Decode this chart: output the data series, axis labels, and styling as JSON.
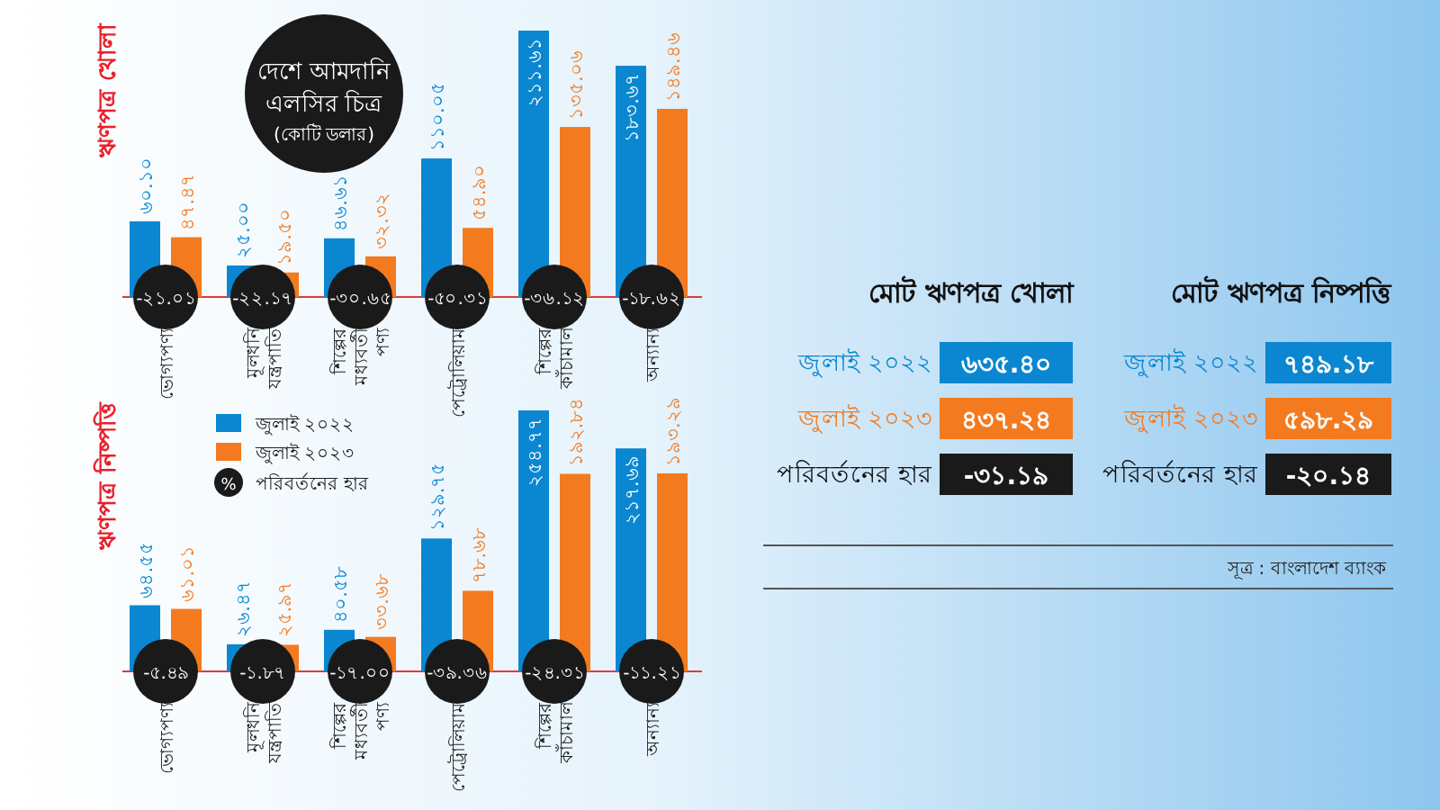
{
  "chart_data": [
    {
      "type": "bar",
      "title": "দেশে আমদানি এলসির চিত্র",
      "subtitle": "(কোটি ডলার)",
      "ylabel": "ঋণপত্র খোলা",
      "categories": [
        "ভোগ্যপণ্য",
        "মূলধনি যন্ত্রপাতি",
        "শিল্পের মধ্যবর্তী পণ্য",
        "পেট্রোলিয়াম",
        "শিল্পের কাঁচামাল",
        "অন্যান্য"
      ],
      "series": [
        {
          "color": "#0a87d0",
          "values": [
            60.1,
            25.0,
            46.61,
            110.05,
            211.61,
            183.67
          ],
          "value_labels": [
            "৬০.১০",
            "২৫.০০",
            "৪৬.৬১",
            "১১০.০৫",
            "২১১.৬১",
            "১৮৩.৬৭"
          ]
        },
        {
          "color": "#f47a20",
          "values": [
            47.47,
            19.5,
            32.32,
            54.9,
            135.06,
            149.46
          ],
          "value_labels": [
            "৪৭.৪৭",
            "১৯.৫০",
            "৩২.৩২",
            "৫৪.৯০",
            "১৩৫.০৬",
            "১৪৯.৪৬"
          ]
        }
      ],
      "annotations": [
        {
          "text": "-২১.০১",
          "x": "ভোগ্যপণ্য"
        },
        {
          "text": "-২২.১৭",
          "x": "মূলধনি যন্ত্রপাতি"
        },
        {
          "text": "-৩০.৬৫",
          "x": "শিল্পের মধ্যবর্তী পণ্য"
        },
        {
          "text": "-৫০.৩১",
          "x": "পেট্রোলিয়াম"
        },
        {
          "text": "-৩৬.১২",
          "x": "শিল্পের কাঁচামাল"
        },
        {
          "text": "-১৮.৬২",
          "x": "অন্যান্য"
        }
      ]
    },
    {
      "type": "bar",
      "ylabel": "ঋণপত্র নিষ্পত্তি",
      "legend": "top left",
      "categories": [
        "ভোগ্যপণ্য",
        "মূলধনি যন্ত্রপাতি",
        "শিল্পের মধ্যবর্তী পণ্য",
        "পেট্রোলিয়াম",
        "শিল্পের কাঁচামাল",
        "অন্যান্য"
      ],
      "series": [
        {
          "name": "জুলাই ২০২২",
          "color": "#0a87d0",
          "values": [
            64.55,
            26.47,
            40.58,
            129.75,
            254.77,
            217.69
          ],
          "value_labels": [
            "৬৪.৫৫",
            "২৬.৪৭",
            "৪০.৫৮",
            "১২৯.৭৫",
            "২৫৪.৭৭",
            "২১৭.৬৯"
          ]
        },
        {
          "name": "জুলাই ২০২৩",
          "color": "#f47a20",
          "values": [
            61.01,
            25.97,
            33.68,
            78.68,
            192.84,
            193.29
          ],
          "value_labels": [
            "৬১.০১",
            "২৫.৯৭",
            "৩৩.৬৮",
            "৭৮.৬৮",
            "১৯২.৮৪",
            "১৯৩.২৯"
          ]
        }
      ],
      "annotations": [
        {
          "text": "-৫.৪৯",
          "x": "ভোগ্যপণ্য"
        },
        {
          "text": "-১.৮৭",
          "x": "মূলধনি যন্ত্রপাতি"
        },
        {
          "text": "-১৭.০০",
          "x": "শিল্পের মধ্যবর্তী পণ্য"
        },
        {
          "text": "-৩৯.৩৬",
          "x": "পেট্রোলিয়াম"
        },
        {
          "text": "-২৪.৩১",
          "x": "শিল্পের কাঁচামাল"
        },
        {
          "text": "-১১.২১",
          "x": "অন্যান্য"
        },
        "%",
        "পরিবর্তনের হার"
      ]
    },
    {
      "type": "other",
      "annotations": [
        "মোট ঋণপত্র খোলা",
        "জুলাই ২০২২",
        "৬৩৫.৪০",
        "জুলাই ২০২৩",
        "৪৩৭.২৪",
        "পরিবর্তনের হার",
        "-৩১.১৯",
        "মোট ঋণপত্র নিষ্পত্তি",
        "জুলাই ২০২২",
        "৭৪৯.১৮",
        "জুলাই ২০২৩",
        "৫৯৮.২৯",
        "পরিবর্তনের হার",
        "-২০.১৪",
        "সূত্র : বাংলাদেশ ব্যাংক"
      ]
    }
  ]
}
